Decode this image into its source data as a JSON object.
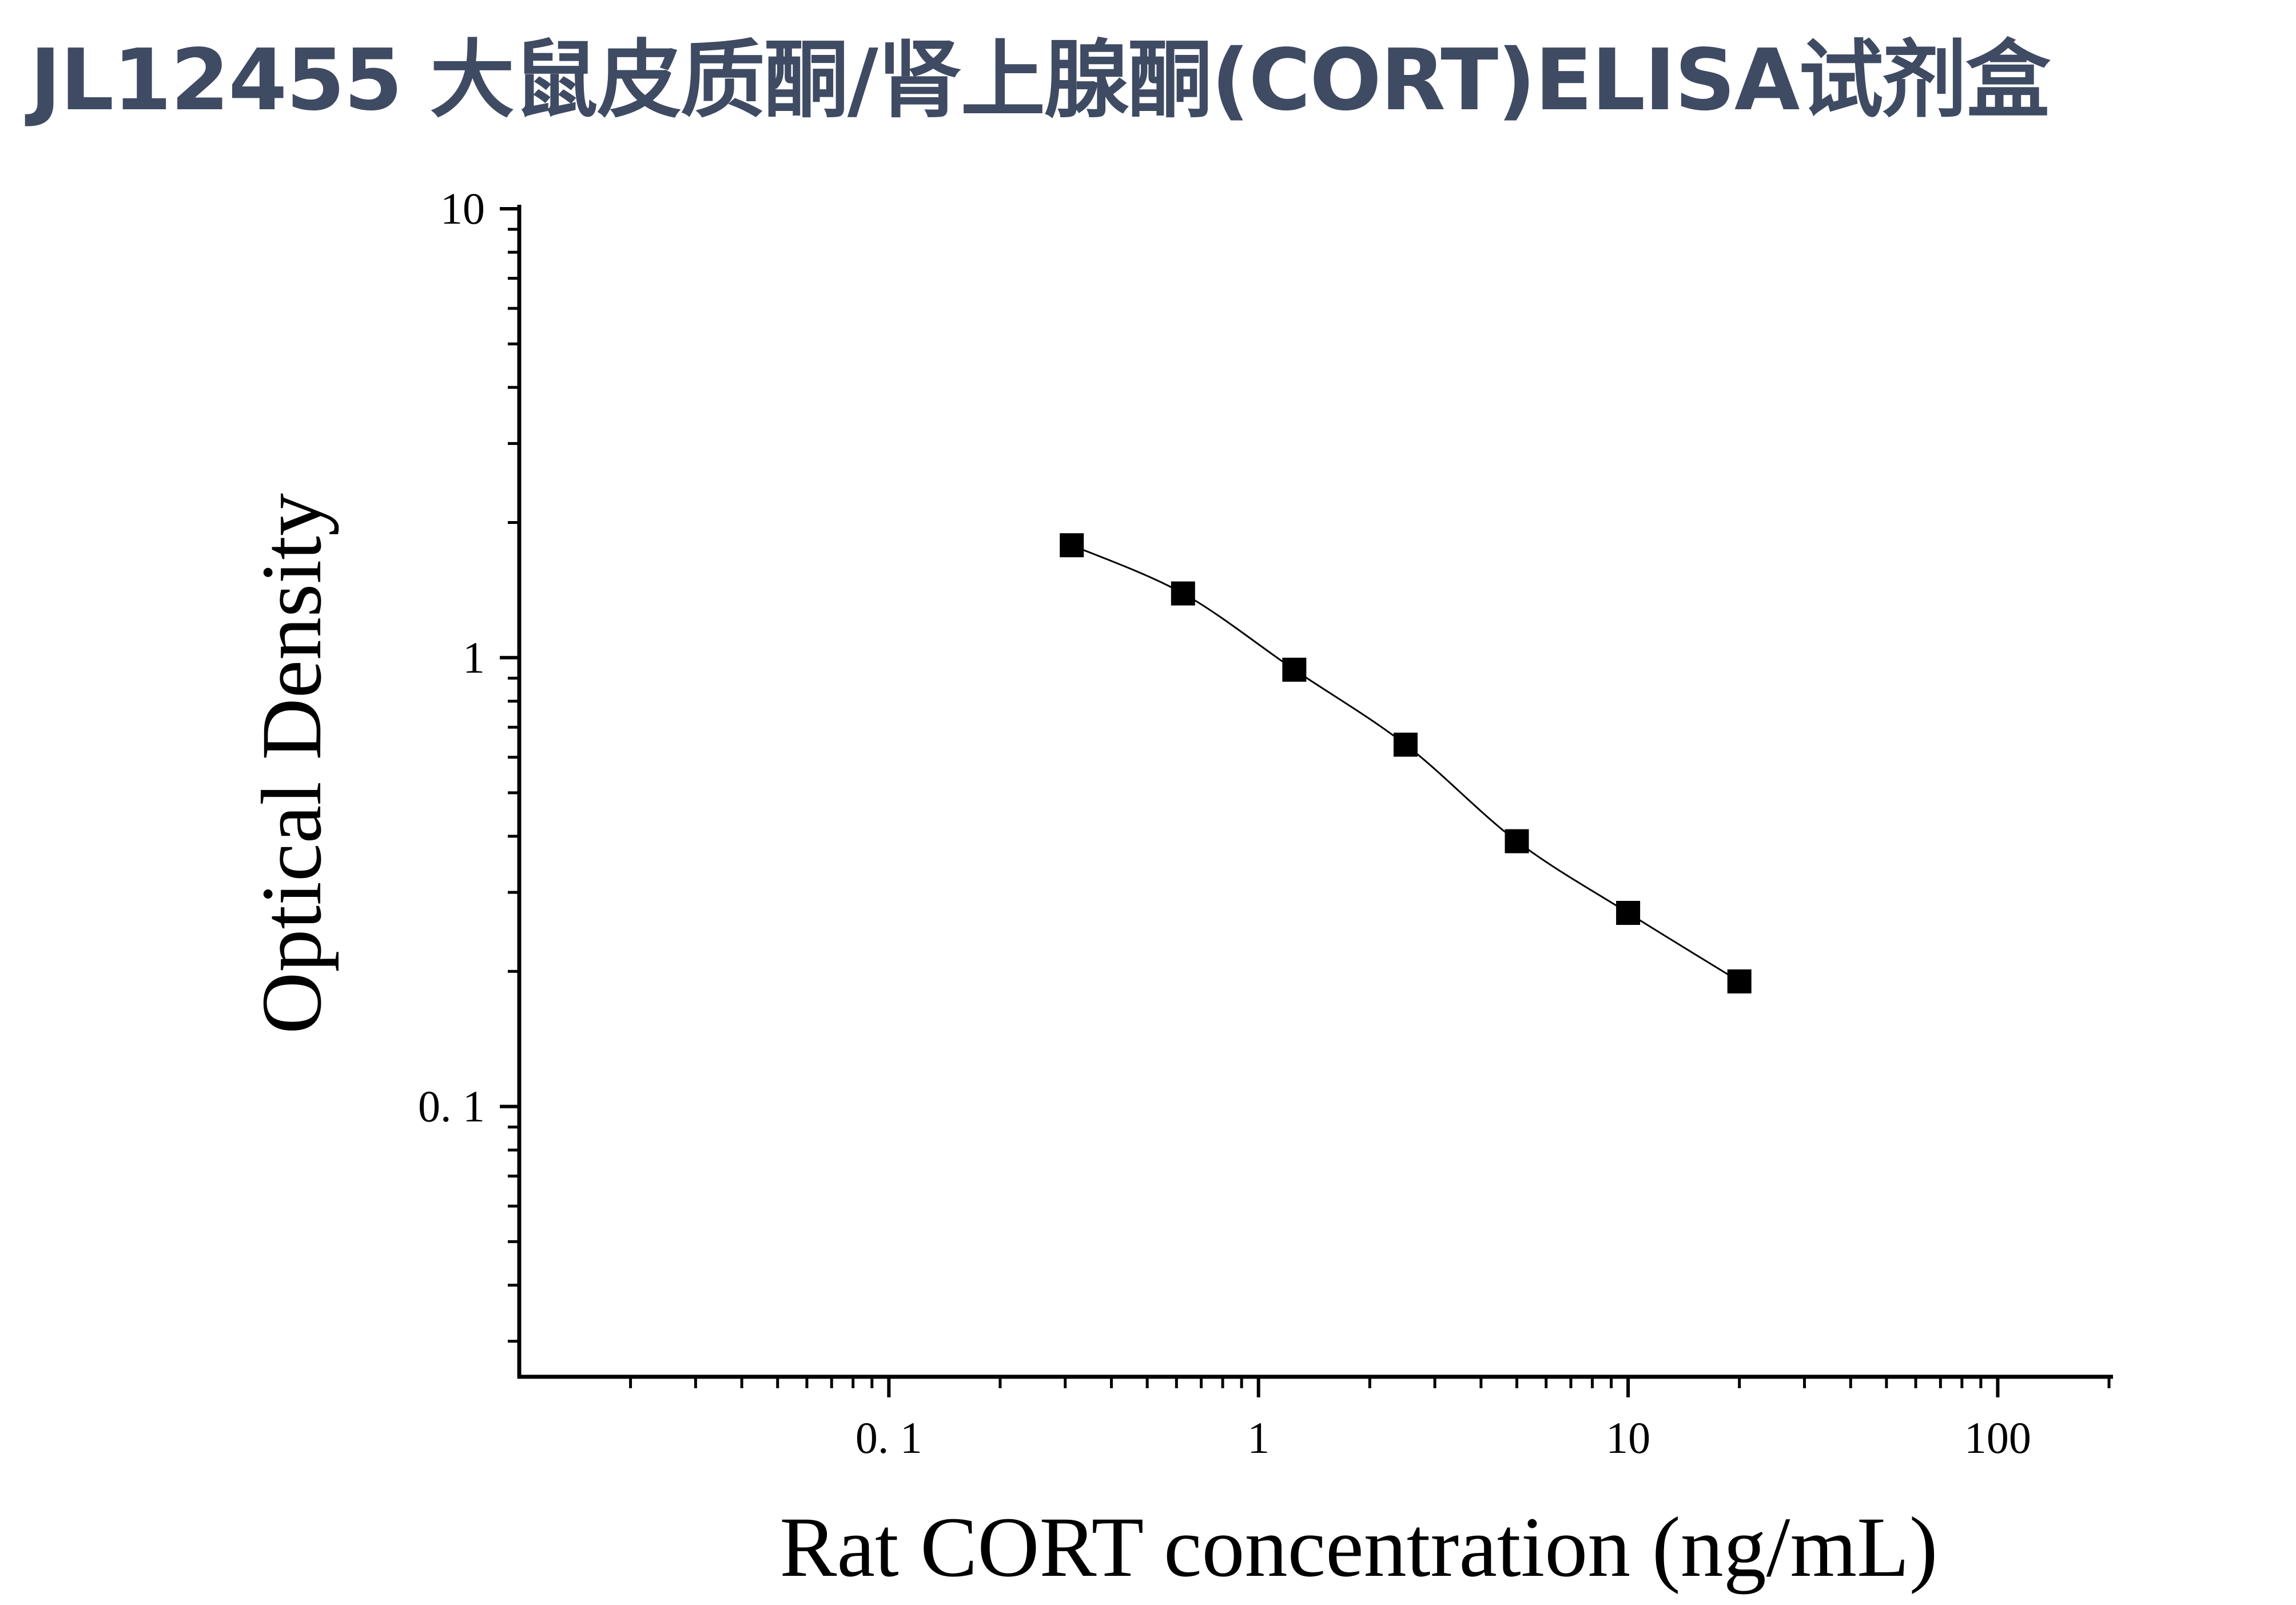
{
  "title": "JL12455 大鼠皮质酮/肾上腺酮(CORT)ELISA试剂盒",
  "chart_data": {
    "type": "scatter",
    "xlabel": "Rat CORT concentration (ng/mL)",
    "ylabel": "Optical Density",
    "x_scale": "log",
    "y_scale": "log",
    "xlim": [
      0.01,
      200
    ],
    "ylim": [
      0.025,
      10
    ],
    "x_tick_labels": [
      {
        "value": 0.1,
        "label": "0. 1"
      },
      {
        "value": 1,
        "label": "1"
      },
      {
        "value": 10,
        "label": "10"
      },
      {
        "value": 100,
        "label": "100"
      }
    ],
    "y_tick_labels": [
      {
        "value": 10,
        "label": "10"
      },
      {
        "value": 1,
        "label": "1"
      },
      {
        "value": 0.1,
        "label": "0. 1"
      }
    ],
    "grid": false,
    "legend": "none",
    "marker": "square",
    "marker_color": "#000000",
    "fit_curve": true,
    "series": [
      {
        "x": [
          0.3125,
          0.625,
          1.25,
          2.5,
          5,
          10,
          20
        ],
        "y": [
          1.78,
          1.39,
          0.94,
          0.64,
          0.39,
          0.27,
          0.19
        ]
      }
    ]
  }
}
